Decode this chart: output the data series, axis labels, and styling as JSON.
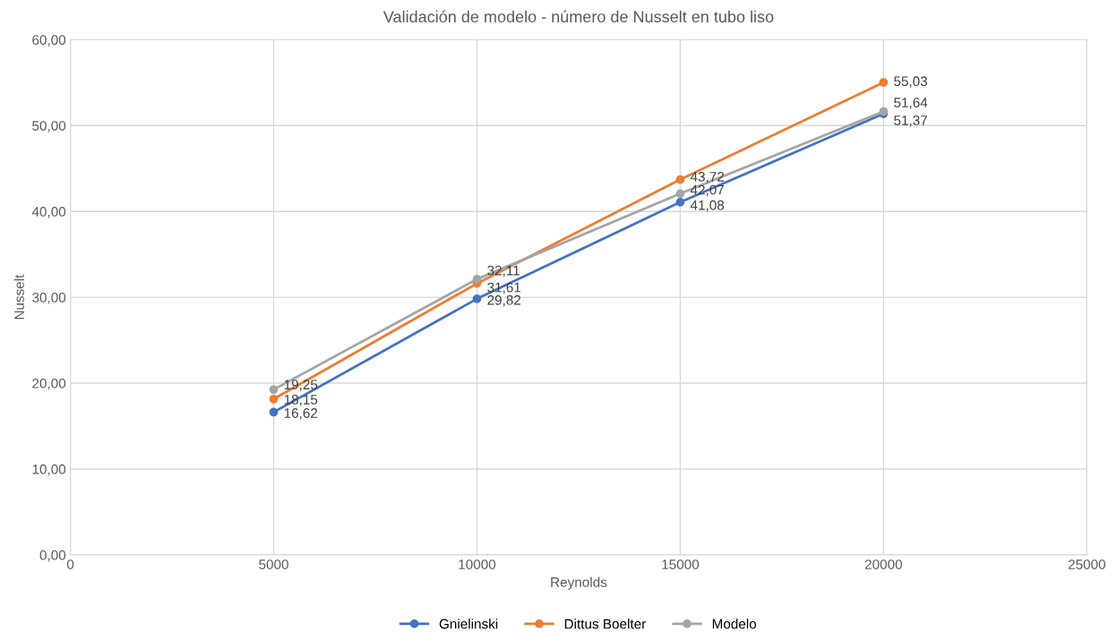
{
  "chart_data": {
    "type": "line",
    "title": "Validación de modelo - número de Nusselt en tubo liso",
    "xlabel": "Reynolds",
    "ylabel": "Nusselt",
    "x": [
      5000,
      10000,
      15000,
      20000
    ],
    "series": [
      {
        "name": "Gnielinski",
        "color": "#4472c4",
        "values": [
          16.62,
          29.82,
          41.08,
          51.37
        ],
        "value_labels": [
          "16,62",
          "29,82",
          "41,08",
          "51,37"
        ]
      },
      {
        "name": "Dittus Boelter",
        "color": "#ed7d31",
        "values": [
          18.15,
          31.61,
          43.72,
          55.03
        ],
        "value_labels": [
          "18,15",
          "31,61",
          "43,72",
          "55,03"
        ]
      },
      {
        "name": "Modelo",
        "color": "#a5a5a5",
        "values": [
          19.25,
          32.11,
          42.07,
          51.64
        ],
        "value_labels": [
          "19,25",
          "32,11",
          "42,07",
          "51,64"
        ]
      }
    ],
    "xlim": [
      0,
      25000
    ],
    "xticks": [
      0,
      5000,
      10000,
      15000,
      20000,
      25000
    ],
    "ylim": [
      0,
      60
    ],
    "yticks": [
      {
        "value": 0,
        "label": "0,00"
      },
      {
        "value": 10,
        "label": "10,00"
      },
      {
        "value": 20,
        "label": "20,00"
      },
      {
        "value": 30,
        "label": "30,00"
      },
      {
        "value": 40,
        "label": "40,00"
      },
      {
        "value": 50,
        "label": "50,00"
      },
      {
        "value": 60,
        "label": "60,00"
      }
    ],
    "grid": true,
    "legend": "bottom",
    "marker": "circle",
    "line_style": "solid"
  }
}
